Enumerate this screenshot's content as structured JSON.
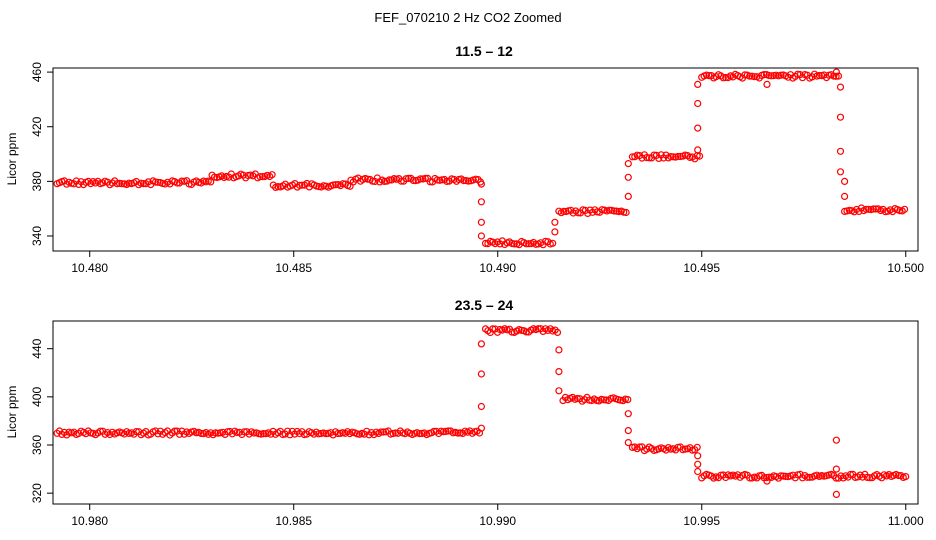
{
  "figure_title": "FEF_070210  2 Hz CO2 Zoomed",
  "chart_data": [
    {
      "type": "scatter",
      "title": "11.5 – 12",
      "xlabel": "",
      "ylabel": "Licor ppm",
      "xlim": [
        10.4791,
        10.5003
      ],
      "ylim": [
        329,
        463
      ],
      "xticks": [
        10.48,
        10.485,
        10.49,
        10.495,
        10.5
      ],
      "xtick_labels": [
        "10.480",
        "10.485",
        "10.490",
        "10.495",
        "10.500"
      ],
      "yticks": [
        340,
        380,
        420,
        460
      ],
      "ytick_labels": [
        "340",
        "380",
        "420",
        "460"
      ],
      "grid": false,
      "marker_color": "#ff0000",
      "segments": [
        {
          "x0": 10.4792,
          "x1": 10.483,
          "y": 379
        },
        {
          "x0": 10.483,
          "x1": 10.4845,
          "y": 384
        },
        {
          "x0": 10.4845,
          "x1": 10.4864,
          "y": 377
        },
        {
          "x0": 10.4864,
          "x1": 10.4896,
          "y": 381
        },
        {
          "x0": 10.4897,
          "x1": 10.4914,
          "y": 335
        },
        {
          "x0": 10.4915,
          "x1": 10.4932,
          "y": 358
        },
        {
          "x0": 10.4933,
          "x1": 10.495,
          "y": 398
        },
        {
          "x0": 10.495,
          "x1": 10.4984,
          "y": 457
        },
        {
          "x0": 10.4985,
          "x1": 10.5,
          "y": 359
        }
      ],
      "transition_points": [
        {
          "x": 10.4896,
          "y": 378
        },
        {
          "x": 10.4896,
          "y": 365
        },
        {
          "x": 10.4896,
          "y": 350
        },
        {
          "x": 10.4896,
          "y": 340
        },
        {
          "x": 10.4914,
          "y": 343
        },
        {
          "x": 10.4914,
          "y": 350
        },
        {
          "x": 10.4932,
          "y": 369
        },
        {
          "x": 10.4932,
          "y": 383
        },
        {
          "x": 10.4932,
          "y": 393
        },
        {
          "x": 10.4949,
          "y": 403
        },
        {
          "x": 10.4949,
          "y": 419
        },
        {
          "x": 10.4949,
          "y": 437
        },
        {
          "x": 10.4949,
          "y": 451
        },
        {
          "x": 10.4966,
          "y": 451
        },
        {
          "x": 10.4984,
          "y": 449
        },
        {
          "x": 10.4984,
          "y": 427
        },
        {
          "x": 10.4984,
          "y": 402
        },
        {
          "x": 10.4984,
          "y": 387
        },
        {
          "x": 10.4985,
          "y": 380
        },
        {
          "x": 10.4985,
          "y": 369
        },
        {
          "x": 10.4983,
          "y": 460
        }
      ]
    },
    {
      "type": "scatter",
      "title": "23.5 – 24",
      "xlabel": "",
      "ylabel": "Licor ppm",
      "xlim": [
        10.9791,
        11.0003
      ],
      "ylim": [
        311,
        463
      ],
      "xticks": [
        10.98,
        10.985,
        10.99,
        10.995,
        11.0
      ],
      "xtick_labels": [
        "10.980",
        "10.985",
        "10.990",
        "10.995",
        "11.000"
      ],
      "yticks": [
        320,
        360,
        400,
        440
      ],
      "ytick_labels": [
        "320",
        "360",
        "400",
        "440"
      ],
      "grid": false,
      "marker_color": "#ff0000",
      "segments": [
        {
          "x0": 10.9792,
          "x1": 10.9896,
          "y": 370
        },
        {
          "x0": 10.9897,
          "x1": 10.9915,
          "y": 455
        },
        {
          "x0": 10.9916,
          "x1": 10.9932,
          "y": 398
        },
        {
          "x0": 10.9933,
          "x1": 10.9949,
          "y": 357
        },
        {
          "x0": 10.995,
          "x1": 11.0,
          "y": 334
        }
      ],
      "transition_points": [
        {
          "x": 10.9896,
          "y": 374
        },
        {
          "x": 10.9896,
          "y": 392
        },
        {
          "x": 10.9896,
          "y": 419
        },
        {
          "x": 10.9896,
          "y": 444
        },
        {
          "x": 10.9915,
          "y": 439
        },
        {
          "x": 10.9915,
          "y": 421
        },
        {
          "x": 10.9915,
          "y": 405
        },
        {
          "x": 10.9932,
          "y": 386
        },
        {
          "x": 10.9932,
          "y": 372
        },
        {
          "x": 10.9932,
          "y": 362
        },
        {
          "x": 10.9949,
          "y": 351
        },
        {
          "x": 10.9949,
          "y": 344
        },
        {
          "x": 10.9949,
          "y": 338
        },
        {
          "x": 10.9966,
          "y": 330
        },
        {
          "x": 10.9983,
          "y": 364
        },
        {
          "x": 10.9983,
          "y": 319
        },
        {
          "x": 10.9983,
          "y": 340
        }
      ]
    }
  ]
}
